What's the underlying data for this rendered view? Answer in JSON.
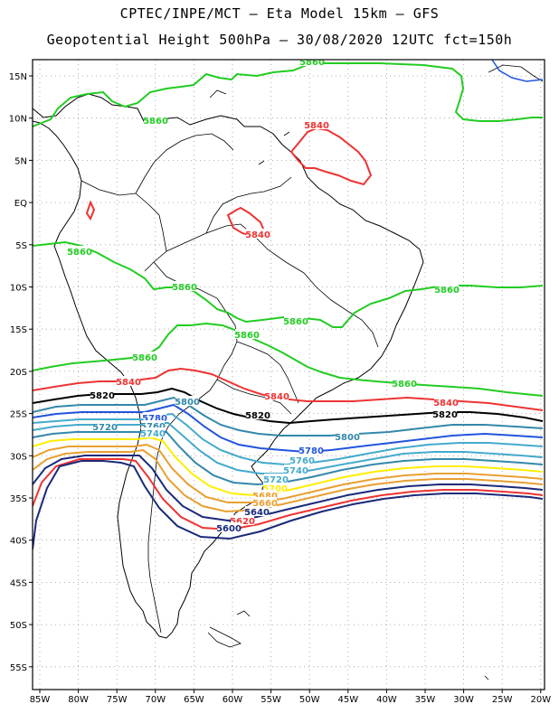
{
  "header": {
    "line1": "CPTEC/INPE/MCT –  Eta Model 15km – GFS",
    "line2": "Geopotential Height 500hPa – 30/08/2020 12UTC fct=150h"
  },
  "axes": {
    "lat_labels": [
      "15N",
      "10N",
      "5N",
      "EQ",
      "5S",
      "10S",
      "15S",
      "20S",
      "25S",
      "30S",
      "35S",
      "40S",
      "45S",
      "50S",
      "55S"
    ],
    "lon_labels": [
      "85W",
      "80W",
      "75W",
      "70W",
      "65W",
      "60W",
      "55W",
      "50W",
      "45W",
      "40W",
      "35W",
      "30W",
      "25W",
      "20W"
    ]
  },
  "colors": {
    "green": "#22cc22",
    "red": "#ee3333",
    "black": "#000000",
    "navy": "#1a2a7a",
    "blue": "#2255dd",
    "steelblue": "#3388aa",
    "teal": "#44aacc",
    "yellow": "#ffee00",
    "orange": "#e8a030"
  },
  "contour_labels": [
    {
      "text": "5860",
      "color": "green"
    },
    {
      "text": "5860",
      "color": "green"
    },
    {
      "text": "5860",
      "color": "green"
    },
    {
      "text": "5860",
      "color": "green"
    },
    {
      "text": "5860",
      "color": "green"
    },
    {
      "text": "5860",
      "color": "green"
    },
    {
      "text": "5860",
      "color": "green"
    },
    {
      "text": "5860",
      "color": "green"
    },
    {
      "text": "5860",
      "color": "green"
    },
    {
      "text": "5840",
      "color": "red"
    },
    {
      "text": "5840",
      "color": "red"
    },
    {
      "text": "5840",
      "color": "red"
    },
    {
      "text": "5840",
      "color": "red"
    },
    {
      "text": "5840",
      "color": "red"
    },
    {
      "text": "5820",
      "color": "black"
    },
    {
      "text": "5820",
      "color": "black"
    },
    {
      "text": "5820",
      "color": "black"
    },
    {
      "text": "5800",
      "color": "steelblue"
    },
    {
      "text": "5800",
      "color": "steelblue"
    },
    {
      "text": "5780",
      "color": "blue"
    },
    {
      "text": "5780",
      "color": "blue"
    },
    {
      "text": "5760",
      "color": "steelblue"
    },
    {
      "text": "5760",
      "color": "teal"
    },
    {
      "text": "5740",
      "color": "teal"
    },
    {
      "text": "5740",
      "color": "teal"
    },
    {
      "text": "5720",
      "color": "steelblue"
    },
    {
      "text": "5720",
      "color": "teal"
    },
    {
      "text": "5700",
      "color": "yellow"
    },
    {
      "text": "5680",
      "color": "orange"
    },
    {
      "text": "5660",
      "color": "orange"
    },
    {
      "text": "5640",
      "color": "navy"
    },
    {
      "text": "5620",
      "color": "red"
    },
    {
      "text": "5600",
      "color": "navy"
    }
  ]
}
